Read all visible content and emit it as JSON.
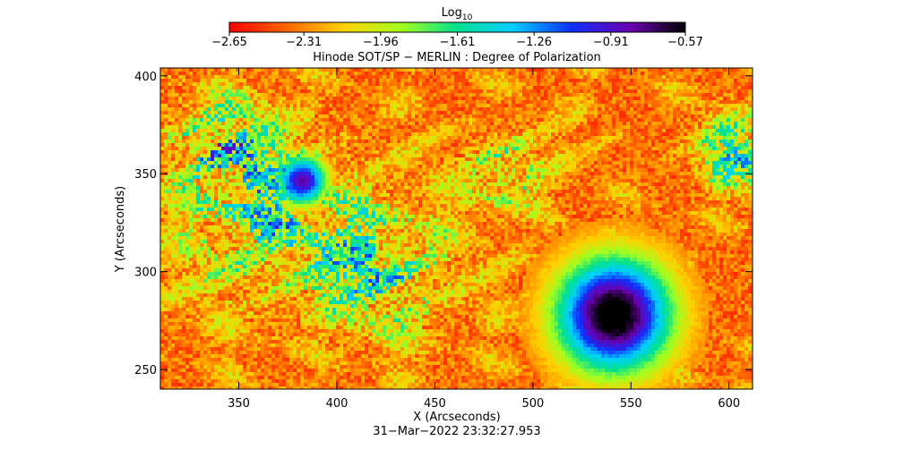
{
  "chart_data": {
    "type": "image",
    "title": "Hinode SOT/SP − MERLIN : Degree of Polarization",
    "xlabel": "X (Arcseconds)",
    "ylabel": "Y (Arcseconds)",
    "footer": "31−Mar−2022 23:32:27.953",
    "xlim": [
      310,
      612
    ],
    "xticks": [
      350,
      400,
      450,
      500,
      550,
      600
    ],
    "ylim": [
      240,
      404
    ],
    "yticks": [
      250,
      300,
      350,
      400
    ],
    "colorbar": {
      "label": "Log",
      "label_sub": "10",
      "lim": [
        -2.65,
        -0.57
      ],
      "ticks": [
        {
          "value": -2.65,
          "label": "−2.65"
        },
        {
          "value": -2.31,
          "label": "−2.31"
        },
        {
          "value": -1.96,
          "label": "−1.96"
        },
        {
          "value": -1.61,
          "label": "−1.61"
        },
        {
          "value": -1.26,
          "label": "−1.26"
        },
        {
          "value": -0.91,
          "label": "−0.91"
        },
        {
          "value": -0.57,
          "label": "−0.57"
        }
      ]
    }
  }
}
